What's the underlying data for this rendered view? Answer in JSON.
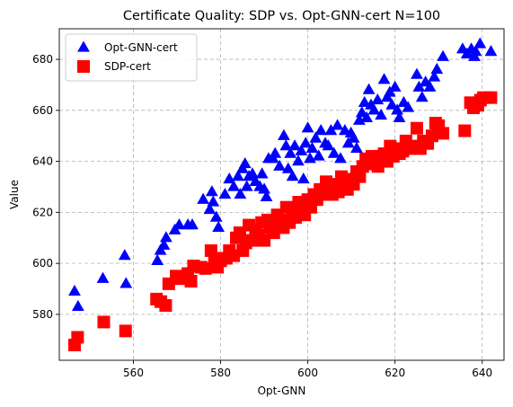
{
  "chart_data": {
    "type": "scatter",
    "title": "Certificate Quality: SDP vs. Opt-GNN-cert N=100",
    "xlabel": "Opt-GNN",
    "ylabel": "Value",
    "xlim": [
      543,
      645
    ],
    "ylim": [
      562,
      692
    ],
    "xticks": [
      560,
      580,
      600,
      620,
      640
    ],
    "yticks": [
      580,
      600,
      620,
      640,
      660,
      680
    ],
    "grid": true,
    "legend_position": "top-left",
    "series": [
      {
        "name": "Opt-GNN-cert",
        "marker": "triangle",
        "color": "#0000ff",
        "points": [
          [
            546.5,
            589
          ],
          [
            547.3,
            583
          ],
          [
            553,
            594
          ],
          [
            558,
            603
          ],
          [
            558.3,
            592
          ],
          [
            565.5,
            601
          ],
          [
            566.2,
            605
          ],
          [
            567,
            607
          ],
          [
            567.5,
            610
          ],
          [
            569.5,
            613
          ],
          [
            570.5,
            615
          ],
          [
            572.5,
            615
          ],
          [
            573.5,
            615
          ],
          [
            576,
            625
          ],
          [
            577.5,
            621
          ],
          [
            578,
            628
          ],
          [
            578.3,
            624
          ],
          [
            579,
            618
          ],
          [
            579.5,
            614
          ],
          [
            581,
            627
          ],
          [
            582,
            633
          ],
          [
            583,
            630
          ],
          [
            584,
            634
          ],
          [
            584.5,
            627
          ],
          [
            585,
            637
          ],
          [
            585.6,
            639
          ],
          [
            586,
            630
          ],
          [
            586.5,
            634
          ],
          [
            587.3,
            635
          ],
          [
            588,
            632
          ],
          [
            589,
            630
          ],
          [
            589.5,
            635
          ],
          [
            590,
            629
          ],
          [
            590.5,
            626
          ],
          [
            591,
            641
          ],
          [
            592,
            641
          ],
          [
            592.5,
            643
          ],
          [
            593.5,
            638
          ],
          [
            594.5,
            650
          ],
          [
            595,
            646
          ],
          [
            595.5,
            637
          ],
          [
            596,
            643
          ],
          [
            596.5,
            634
          ],
          [
            597,
            646
          ],
          [
            597.8,
            640
          ],
          [
            598.5,
            644
          ],
          [
            599,
            633
          ],
          [
            599.5,
            647
          ],
          [
            600,
            653
          ],
          [
            600.5,
            641
          ],
          [
            601,
            645
          ],
          [
            601.8,
            649
          ],
          [
            602.5,
            642
          ],
          [
            603,
            652
          ],
          [
            604,
            647
          ],
          [
            604.7,
            646
          ],
          [
            605.3,
            652
          ],
          [
            606,
            643
          ],
          [
            606.8,
            654
          ],
          [
            607.5,
            641
          ],
          [
            608.5,
            652
          ],
          [
            609.3,
            647
          ],
          [
            609.9,
            651
          ],
          [
            610.5,
            649
          ],
          [
            611.2,
            645
          ],
          [
            611.8,
            656
          ],
          [
            612.4,
            659
          ],
          [
            613,
            663
          ],
          [
            613.5,
            657
          ],
          [
            614,
            668
          ],
          [
            614.5,
            662
          ],
          [
            615.2,
            660
          ],
          [
            616,
            664
          ],
          [
            616.8,
            658
          ],
          [
            617.5,
            672
          ],
          [
            618.2,
            665
          ],
          [
            618.8,
            667
          ],
          [
            619.3,
            662
          ],
          [
            620,
            669
          ],
          [
            620.5,
            660
          ],
          [
            621,
            657
          ],
          [
            622,
            663
          ],
          [
            623,
            661
          ],
          [
            625,
            674
          ],
          [
            625.5,
            669
          ],
          [
            626.2,
            665
          ],
          [
            627,
            671
          ],
          [
            628,
            669
          ],
          [
            629,
            673
          ],
          [
            629.6,
            676
          ],
          [
            631,
            681
          ],
          [
            635.5,
            684
          ],
          [
            636.5,
            682
          ],
          [
            637.5,
            684
          ],
          [
            638.2,
            681
          ],
          [
            638.5,
            683
          ],
          [
            639.5,
            686
          ],
          [
            642,
            683
          ]
        ]
      },
      {
        "name": "SDP-cert",
        "marker": "square",
        "color": "#ff0000",
        "points": [
          [
            546.5,
            568
          ],
          [
            547.2,
            571
          ],
          [
            553.2,
            577
          ],
          [
            558.2,
            573.5
          ],
          [
            565.3,
            586
          ],
          [
            566.3,
            585
          ],
          [
            567.4,
            583.5
          ],
          [
            568.1,
            592
          ],
          [
            569.8,
            595
          ],
          [
            570.8,
            594
          ],
          [
            572.5,
            596
          ],
          [
            573.2,
            593
          ],
          [
            573.8,
            599
          ],
          [
            575.5,
            598.5
          ],
          [
            576.5,
            598
          ],
          [
            577.8,
            605
          ],
          [
            578.6,
            602
          ],
          [
            579.3,
            598.5
          ],
          [
            580,
            601
          ],
          [
            581.3,
            602
          ],
          [
            582,
            605
          ],
          [
            583,
            603
          ],
          [
            583.6,
            610
          ],
          [
            584.4,
            612
          ],
          [
            585.1,
            605
          ],
          [
            585.8,
            608
          ],
          [
            586.5,
            615
          ],
          [
            587.2,
            609
          ],
          [
            588,
            613
          ],
          [
            588.7,
            611
          ],
          [
            589.4,
            616
          ],
          [
            590,
            609
          ],
          [
            590.8,
            617
          ],
          [
            591.5,
            614
          ],
          [
            592.2,
            612
          ],
          [
            593,
            619
          ],
          [
            593.7,
            617
          ],
          [
            594.4,
            614
          ],
          [
            595.1,
            622
          ],
          [
            595.8,
            616
          ],
          [
            596.5,
            620
          ],
          [
            597.2,
            618
          ],
          [
            597.9,
            624
          ],
          [
            598.6,
            621
          ],
          [
            599.3,
            619
          ],
          [
            600,
            625
          ],
          [
            600.7,
            622
          ],
          [
            601.4,
            627
          ],
          [
            602.1,
            625
          ],
          [
            602.8,
            629
          ],
          [
            603.5,
            627
          ],
          [
            604.2,
            632
          ],
          [
            604.9,
            629
          ],
          [
            605.6,
            627
          ],
          [
            606.3,
            631
          ],
          [
            607,
            628
          ],
          [
            607.7,
            634
          ],
          [
            608.4,
            632
          ],
          [
            609.1,
            629
          ],
          [
            609.8,
            633
          ],
          [
            610.5,
            631
          ],
          [
            611.2,
            636
          ],
          [
            611.9,
            634
          ],
          [
            612.6,
            638
          ],
          [
            613.3,
            641
          ],
          [
            614,
            639
          ],
          [
            614.7,
            642
          ],
          [
            615.4,
            640
          ],
          [
            616.1,
            638
          ],
          [
            616.8,
            641
          ],
          [
            617.5,
            643
          ],
          [
            618.2,
            640
          ],
          [
            618.9,
            646
          ],
          [
            619.6,
            642
          ],
          [
            620.3,
            645
          ],
          [
            621,
            643
          ],
          [
            621.8,
            644
          ],
          [
            622.5,
            648
          ],
          [
            623.3,
            645
          ],
          [
            624,
            646
          ],
          [
            625,
            653
          ],
          [
            625.8,
            645
          ],
          [
            626.5,
            648
          ],
          [
            627.5,
            647
          ],
          [
            628.5,
            650
          ],
          [
            629.3,
            655
          ],
          [
            630,
            654
          ],
          [
            631,
            651
          ],
          [
            636,
            652
          ],
          [
            637.3,
            663
          ],
          [
            638,
            661
          ],
          [
            639,
            662
          ],
          [
            639.6,
            664
          ],
          [
            640.3,
            665
          ],
          [
            642,
            665
          ]
        ]
      }
    ]
  }
}
